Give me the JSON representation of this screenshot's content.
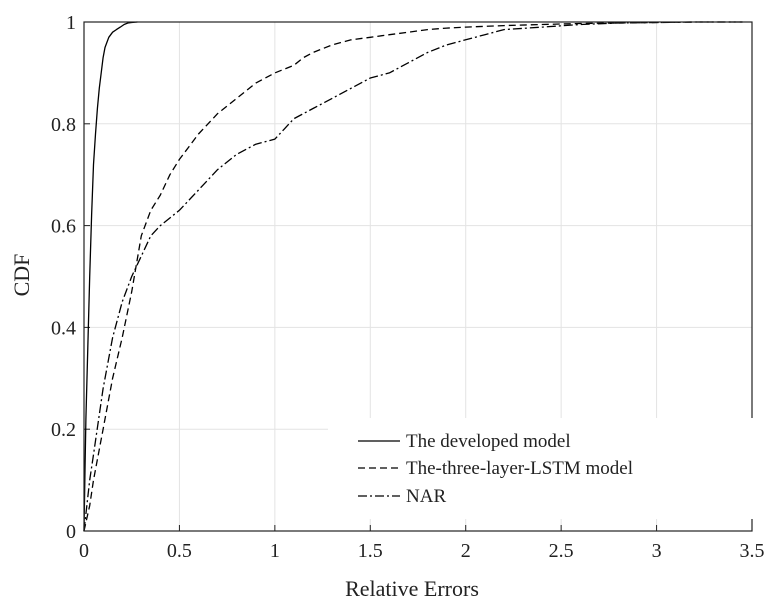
{
  "chart_data": {
    "type": "line",
    "title": "",
    "xlabel": "Relative Errors",
    "ylabel": "CDF",
    "xlim": [
      0,
      3.5
    ],
    "ylim": [
      0,
      1
    ],
    "xticks": [
      0,
      0.5,
      1,
      1.5,
      2,
      2.5,
      3,
      3.5
    ],
    "xtick_labels": [
      "0",
      "0.5",
      "1",
      "1.5",
      "2",
      "2.5",
      "3",
      "3.5"
    ],
    "yticks": [
      0,
      0.2,
      0.4,
      0.6,
      0.8,
      1
    ],
    "ytick_labels": [
      "0",
      "0.2",
      "0.4",
      "0.6",
      "0.8",
      "1"
    ],
    "grid": true,
    "legend_position": "bottom-right",
    "series": [
      {
        "name": "The developed model",
        "style": "solid",
        "color": "#000000",
        "x": [
          0,
          0.005,
          0.01,
          0.02,
          0.03,
          0.04,
          0.05,
          0.06,
          0.07,
          0.08,
          0.09,
          0.1,
          0.11,
          0.12,
          0.13,
          0.15,
          0.17,
          0.19,
          0.21,
          0.23,
          0.25,
          0.28
        ],
        "y": [
          0,
          0.12,
          0.22,
          0.36,
          0.5,
          0.62,
          0.72,
          0.78,
          0.83,
          0.87,
          0.9,
          0.93,
          0.95,
          0.96,
          0.97,
          0.98,
          0.985,
          0.99,
          0.995,
          0.998,
          0.999,
          1.0
        ]
      },
      {
        "name": "The-three-layer-LSTM model",
        "style": "dashed",
        "color": "#000000",
        "x": [
          0,
          0.03,
          0.05,
          0.1,
          0.15,
          0.2,
          0.25,
          0.3,
          0.35,
          0.4,
          0.45,
          0.5,
          0.6,
          0.7,
          0.8,
          0.9,
          1.0,
          1.1,
          1.15,
          1.2,
          1.3,
          1.4,
          1.5,
          1.6,
          1.7,
          1.8,
          1.9,
          2.0,
          2.2,
          2.4,
          2.6,
          2.8,
          3.0,
          3.2,
          3.45
        ],
        "y": [
          0,
          0.05,
          0.1,
          0.2,
          0.3,
          0.38,
          0.47,
          0.58,
          0.63,
          0.66,
          0.7,
          0.73,
          0.78,
          0.82,
          0.85,
          0.88,
          0.9,
          0.915,
          0.93,
          0.94,
          0.955,
          0.965,
          0.97,
          0.975,
          0.98,
          0.985,
          0.988,
          0.99,
          0.993,
          0.995,
          0.997,
          0.998,
          0.999,
          1.0,
          1.0
        ]
      },
      {
        "name": "NAR",
        "style": "dashdot",
        "color": "#000000",
        "x": [
          0,
          0.03,
          0.05,
          0.1,
          0.15,
          0.2,
          0.25,
          0.3,
          0.35,
          0.4,
          0.5,
          0.6,
          0.7,
          0.8,
          0.9,
          1.0,
          1.05,
          1.1,
          1.2,
          1.3,
          1.4,
          1.5,
          1.6,
          1.7,
          1.8,
          1.9,
          2.0,
          2.1,
          2.2,
          2.4,
          2.6,
          2.8,
          3.0,
          3.2,
          3.45
        ],
        "y": [
          0,
          0.1,
          0.15,
          0.28,
          0.38,
          0.45,
          0.5,
          0.54,
          0.58,
          0.6,
          0.63,
          0.67,
          0.71,
          0.74,
          0.76,
          0.77,
          0.79,
          0.81,
          0.83,
          0.85,
          0.87,
          0.89,
          0.9,
          0.92,
          0.94,
          0.955,
          0.965,
          0.975,
          0.985,
          0.99,
          0.995,
          0.998,
          0.999,
          1.0,
          1.0
        ]
      }
    ]
  }
}
